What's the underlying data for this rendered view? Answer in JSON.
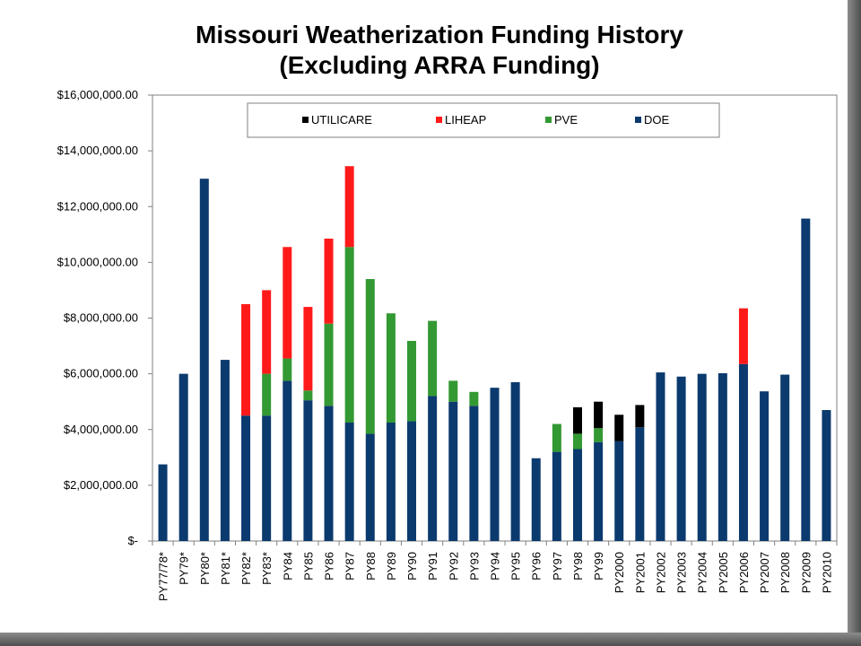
{
  "colors": {
    "UTILICARE": "#000000",
    "LIHEAP": "#ff1a1a",
    "PVE": "#339933",
    "DOE": "#0b3a6e"
  },
  "chart_data": {
    "type": "bar",
    "stacked": true,
    "title_line1": "Missouri Weatherization Funding History",
    "title_line2": "(Excluding ARRA Funding)",
    "xlabel": "",
    "ylabel": "",
    "ylim": [
      0,
      16000000
    ],
    "y_ticks": [
      {
        "value": 0,
        "label": "$-"
      },
      {
        "value": 2000000,
        "label": "$2,000,000.00"
      },
      {
        "value": 4000000,
        "label": "$4,000,000.00"
      },
      {
        "value": 6000000,
        "label": "$6,000,000.00"
      },
      {
        "value": 8000000,
        "label": "$8,000,000.00"
      },
      {
        "value": 10000000,
        "label": "$10,000,000.00"
      },
      {
        "value": 12000000,
        "label": "$12,000,000.00"
      },
      {
        "value": 14000000,
        "label": "$14,000,000.00"
      },
      {
        "value": 16000000,
        "label": "$16,000,000.00"
      }
    ],
    "grid": false,
    "legend_position": "top",
    "legend_order": [
      "UTILICARE",
      "LIHEAP",
      "PVE",
      "DOE"
    ],
    "categories": [
      "PY77/78*",
      "PY79*",
      "PY80*",
      "PY81*",
      "PY82*",
      "PY83*",
      "PY84",
      "PY85",
      "PY86",
      "PY87",
      "PY88",
      "PY89",
      "PY90",
      "PY91",
      "PY92",
      "PY93",
      "PY94",
      "PY95",
      "PY96",
      "PY97",
      "PY98",
      "PY99",
      "PY2000",
      "PY2001",
      "PY2002",
      "PY2003",
      "PY2004",
      "PY2005",
      "PY2006",
      "PY2007",
      "PY2008",
      "PY2009",
      "PY2010"
    ],
    "series": [
      {
        "name": "DOE",
        "values": [
          2750000,
          6000000,
          13000000,
          6500000,
          4500000,
          4500000,
          5750000,
          5050000,
          4850000,
          4250000,
          3850000,
          4250000,
          4300000,
          5200000,
          5000000,
          4850000,
          5500000,
          5700000,
          2970000,
          3200000,
          3300000,
          3550000,
          3580000,
          4080000,
          6050000,
          5900000,
          6000000,
          6020000,
          6350000,
          5370000,
          5970000,
          11570000,
          4700000
        ]
      },
      {
        "name": "PVE",
        "values": [
          0,
          0,
          0,
          0,
          0,
          1500000,
          800000,
          350000,
          2950000,
          6300000,
          5550000,
          3920000,
          2880000,
          2700000,
          750000,
          500000,
          0,
          0,
          0,
          1000000,
          550000,
          500000,
          0,
          0,
          0,
          0,
          0,
          0,
          0,
          0,
          0,
          0,
          0
        ]
      },
      {
        "name": "LIHEAP",
        "values": [
          0,
          0,
          0,
          0,
          4000000,
          3000000,
          4000000,
          3000000,
          3050000,
          2900000,
          0,
          0,
          0,
          0,
          0,
          0,
          0,
          0,
          0,
          0,
          0,
          0,
          0,
          0,
          0,
          0,
          0,
          0,
          2000000,
          0,
          0,
          0,
          0
        ]
      },
      {
        "name": "UTILICARE",
        "values": [
          0,
          0,
          0,
          0,
          0,
          0,
          0,
          0,
          0,
          0,
          0,
          0,
          0,
          0,
          0,
          0,
          0,
          0,
          0,
          0,
          950000,
          950000,
          950000,
          800000,
          0,
          0,
          0,
          0,
          0,
          0,
          0,
          0,
          0
        ]
      }
    ]
  }
}
